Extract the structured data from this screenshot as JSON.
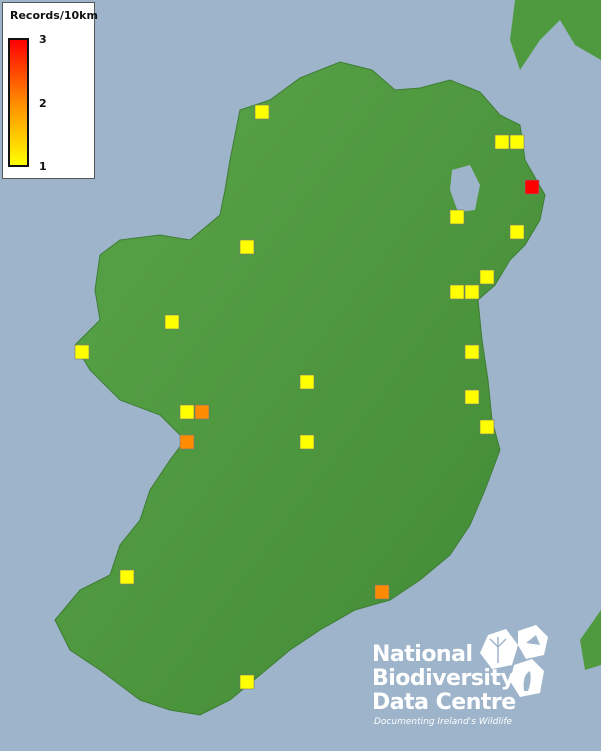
{
  "legend": {
    "title": "Records/10km",
    "ticks": [
      "3",
      "2",
      "1"
    ],
    "min": 1,
    "max": 3,
    "colors": {
      "low": "#ffff00",
      "mid": "#ff8c00",
      "high": "#ff0000"
    }
  },
  "map": {
    "ocean_color": "#9db4cb",
    "land_color": "#4f9a3e",
    "records": [
      1,
      1,
      1,
      3,
      1,
      1,
      1,
      1,
      1,
      1,
      1,
      1,
      1,
      1,
      1,
      2,
      1,
      2,
      1,
      1,
      1,
      2,
      1
    ]
  },
  "logo": {
    "line1": "National",
    "line2": "Biodiversity",
    "line3": "Data Centre",
    "tagline": "Documenting Ireland's Wildlife"
  }
}
